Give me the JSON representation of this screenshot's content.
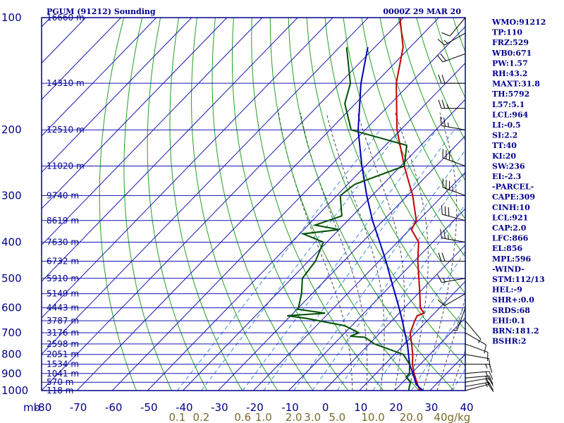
{
  "header": {
    "station": "PGUM (91212) Sounding",
    "time": "0000Z 29 MAR 20"
  },
  "colors": {
    "frame": "#00008b",
    "isotherm": "#1616b4",
    "dry_adiabat": "#22a022",
    "moist_adiabat": "#4a4a4a",
    "mixing_ratio": "#3c8cdc",
    "temperature": "#c00000",
    "dewpoint": "#005000",
    "parcel": "#0000b4",
    "wind": "#000000",
    "mr_label": "#7a6a2a"
  },
  "chart_data": {
    "type": "skew-t",
    "title": "PGUM (91212) Sounding",
    "valid_time": "0000Z 29 MAR 20",
    "pressure_range_mb": [
      1000,
      100
    ],
    "temperature_range_c": [
      -80,
      40
    ],
    "skew_deg_per_decade": 102.5,
    "pressure_label": "mb",
    "pressure_levels": [
      {
        "p": 100,
        "label": "100",
        "height": "16660 m"
      },
      {
        "p": 150,
        "label": "",
        "height": "14310 m"
      },
      {
        "p": 200,
        "label": "200",
        "height": "12510 m"
      },
      {
        "p": 250,
        "label": "",
        "height": "11020 m"
      },
      {
        "p": 300,
        "label": "300",
        "height": "9740 m"
      },
      {
        "p": 350,
        "label": "",
        "height": "8619 m"
      },
      {
        "p": 400,
        "label": "400",
        "height": "7630 m"
      },
      {
        "p": 450,
        "label": "",
        "height": "6732 m"
      },
      {
        "p": 500,
        "label": "500",
        "height": "5910 m"
      },
      {
        "p": 550,
        "label": "",
        "height": "5149 m"
      },
      {
        "p": 600,
        "label": "600",
        "height": "4443 m"
      },
      {
        "p": 650,
        "label": "",
        "height": "3787 m"
      },
      {
        "p": 700,
        "label": "700",
        "height": "3176 m"
      },
      {
        "p": 750,
        "label": "",
        "height": "2598 m"
      },
      {
        "p": 800,
        "label": "800",
        "height": "2051 m"
      },
      {
        "p": 850,
        "label": "",
        "height": "1534 m"
      },
      {
        "p": 900,
        "label": "900",
        "height": "1041 m"
      },
      {
        "p": 950,
        "label": "",
        "height": "570 m"
      },
      {
        "p": 1000,
        "label": "1000",
        "height": "118 m"
      }
    ],
    "temperature_ticks": [
      -80,
      -70,
      -60,
      -50,
      -40,
      -30,
      -20,
      -10,
      0,
      10,
      20,
      30,
      40
    ],
    "mixing_ratio_labels": [
      {
        "w": 0.1,
        "label": "0.1"
      },
      {
        "w": 0.2,
        "label": "0.2"
      },
      {
        "w": 0.6,
        "label": "0.6"
      },
      {
        "w": 1.0,
        "label": "1.0"
      },
      {
        "w": 2.0,
        "label": "2.0"
      },
      {
        "w": 3.0,
        "label": "3.0"
      },
      {
        "w": 5.0,
        "label": "5.0"
      },
      {
        "w": 10.0,
        "label": "10.0"
      },
      {
        "w": 20.0,
        "label": "20.0"
      },
      {
        "w": 40.0,
        "label": "40g/kg"
      }
    ],
    "temperature": [
      [
        1000,
        28.0
      ],
      [
        990,
        26.5
      ],
      [
        950,
        24.0
      ],
      [
        900,
        20.8
      ],
      [
        850,
        17.8
      ],
      [
        800,
        15.2
      ],
      [
        750,
        12.0
      ],
      [
        700,
        8.5
      ],
      [
        650,
        6.5
      ],
      [
        630,
        5.8
      ],
      [
        620,
        7.0
      ],
      [
        600,
        4.5
      ],
      [
        550,
        0.5
      ],
      [
        500,
        -4.0
      ],
      [
        450,
        -9.0
      ],
      [
        400,
        -14.0
      ],
      [
        370,
        -19.5
      ],
      [
        350,
        -20.6
      ],
      [
        300,
        -28.5
      ],
      [
        250,
        -39.0
      ],
      [
        200,
        -51.0
      ],
      [
        150,
        -64.0
      ],
      [
        120,
        -72.0
      ],
      [
        100,
        -81.0
      ]
    ],
    "dewpoint": [
      [
        1000,
        24.0
      ],
      [
        980,
        23.2
      ],
      [
        950,
        22.2
      ],
      [
        920,
        19.5
      ],
      [
        900,
        19.5
      ],
      [
        850,
        17.0
      ],
      [
        800,
        12.5
      ],
      [
        750,
        1.5
      ],
      [
        720,
        -3.0
      ],
      [
        715,
        -7.5
      ],
      [
        700,
        -6.0
      ],
      [
        670,
        -12.0
      ],
      [
        640,
        -25.0
      ],
      [
        630,
        -31.0
      ],
      [
        620,
        -21.0
      ],
      [
        605,
        -30.0
      ],
      [
        600,
        -30.0
      ],
      [
        550,
        -33.0
      ],
      [
        500,
        -37.0
      ],
      [
        450,
        -38.0
      ],
      [
        400,
        -41.0
      ],
      [
        380,
        -49.0
      ],
      [
        370,
        -40.0
      ],
      [
        360,
        -48.0
      ],
      [
        340,
        -43.0
      ],
      [
        300,
        -49.0
      ],
      [
        280,
        -48.0
      ],
      [
        250,
        -39.0
      ],
      [
        220,
        -44.0
      ],
      [
        200,
        -64.0
      ],
      [
        170,
        -73.0
      ],
      [
        150,
        -77.0
      ],
      [
        120,
        -88.0
      ]
    ],
    "parcel": [
      [
        1000,
        28.0
      ],
      [
        964,
        24.5
      ],
      [
        900,
        20.5
      ],
      [
        850,
        17.0
      ],
      [
        800,
        14.0
      ],
      [
        750,
        10.8
      ],
      [
        700,
        7.0
      ],
      [
        650,
        3.0
      ],
      [
        600,
        -1.5
      ],
      [
        550,
        -6.5
      ],
      [
        500,
        -12.0
      ],
      [
        450,
        -18.0
      ],
      [
        400,
        -25.0
      ],
      [
        350,
        -33.0
      ],
      [
        300,
        -41.5
      ],
      [
        250,
        -51.0
      ],
      [
        200,
        -62.0
      ],
      [
        150,
        -74.0
      ],
      [
        120,
        -82.0
      ]
    ],
    "winds": [
      {
        "p": 1000,
        "dir": 75,
        "spd": 10
      },
      {
        "p": 975,
        "dir": 80,
        "spd": 15
      },
      {
        "p": 950,
        "dir": 80,
        "spd": 20
      },
      {
        "p": 925,
        "dir": 85,
        "spd": 20
      },
      {
        "p": 900,
        "dir": 85,
        "spd": 20
      },
      {
        "p": 850,
        "dir": 90,
        "spd": 15
      },
      {
        "p": 800,
        "dir": 100,
        "spd": 10
      },
      {
        "p": 750,
        "dir": 110,
        "spd": 10
      },
      {
        "p": 700,
        "dir": 120,
        "spd": 10
      },
      {
        "p": 650,
        "dir": 140,
        "spd": 5
      },
      {
        "p": 600,
        "dir": 200,
        "spd": 5
      },
      {
        "p": 550,
        "dir": 240,
        "spd": 10
      },
      {
        "p": 500,
        "dir": 260,
        "spd": 15
      },
      {
        "p": 450,
        "dir": 270,
        "spd": 20
      },
      {
        "p": 400,
        "dir": 280,
        "spd": 25
      },
      {
        "p": 350,
        "dir": 285,
        "spd": 30
      },
      {
        "p": 300,
        "dir": 290,
        "spd": 35
      },
      {
        "p": 250,
        "dir": 290,
        "spd": 30
      },
      {
        "p": 200,
        "dir": 280,
        "spd": 25
      },
      {
        "p": 175,
        "dir": 270,
        "spd": 25
      },
      {
        "p": 150,
        "dir": 270,
        "spd": 20
      },
      {
        "p": 125,
        "dir": 250,
        "spd": 20
      },
      {
        "p": 110,
        "dir": 240,
        "spd": 15
      },
      {
        "p": 100,
        "dir": 220,
        "spd": 10
      }
    ]
  },
  "indices": [
    "WMO:91212",
    "TP:110",
    "FRZ:529",
    "WB0:671",
    "PW:1.57",
    "RH:43.2",
    "MAXT:31.8",
    "TH:5792",
    "L57:5.1",
    "LCL:964",
    "LI:-0.5",
    "SI:2.2",
    "TT:40",
    "KI:20",
    "SW:236",
    "EI:-2.3",
    "-PARCEL-",
    "CAPE:309",
    "CINH:10",
    "LCL:921",
    "CAP:2.0",
    "LFC:866",
    "EL:856",
    "MPL:596",
    "-WIND-",
    "STM:112/13",
    "HEL:-9",
    "SHR+:0.0",
    "SRDS:68",
    "EHI:0.1",
    "BRN:181.2",
    "BSHR:2"
  ]
}
